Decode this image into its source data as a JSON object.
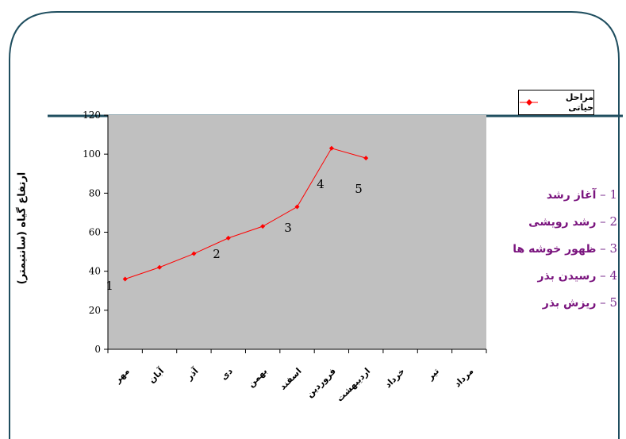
{
  "chart_data": {
    "type": "line",
    "categories": [
      "مهر",
      "آبان",
      "آذر",
      "دی",
      "بهمن",
      "اسفند",
      "فروردین",
      "اردیبهشت",
      "خرداد",
      "تیر",
      "مرداد"
    ],
    "series": [
      {
        "name": "مراحل حیاتی",
        "values": [
          36,
          42,
          49,
          57,
          63,
          73,
          103,
          98,
          null,
          null,
          null
        ],
        "color": "#ff0000"
      }
    ],
    "ylabel": "ارتفاع گیاه (سانتیمتر)",
    "ylim": [
      0,
      120
    ],
    "yticks": [
      "0",
      "20",
      "40",
      "60",
      "80",
      "100",
      "120"
    ],
    "legend_position": "top-right",
    "plot_background": "#c0c0c0",
    "annotations": [
      "1",
      "2",
      "3",
      "4",
      "5"
    ]
  },
  "stages": [
    {
      "num": "1",
      "text": "آغاز رشد"
    },
    {
      "num": "2",
      "text": "رشد رویشی"
    },
    {
      "num": "3",
      "text": "ظهور خوشه ها"
    },
    {
      "num": "4",
      "text": "رسیدن بذر"
    },
    {
      "num": "5",
      "text": "ریزش بذر"
    }
  ],
  "colors": {
    "frame": "#1f4e5f",
    "stage_text": "#7a147e",
    "line": "#ff0000"
  }
}
